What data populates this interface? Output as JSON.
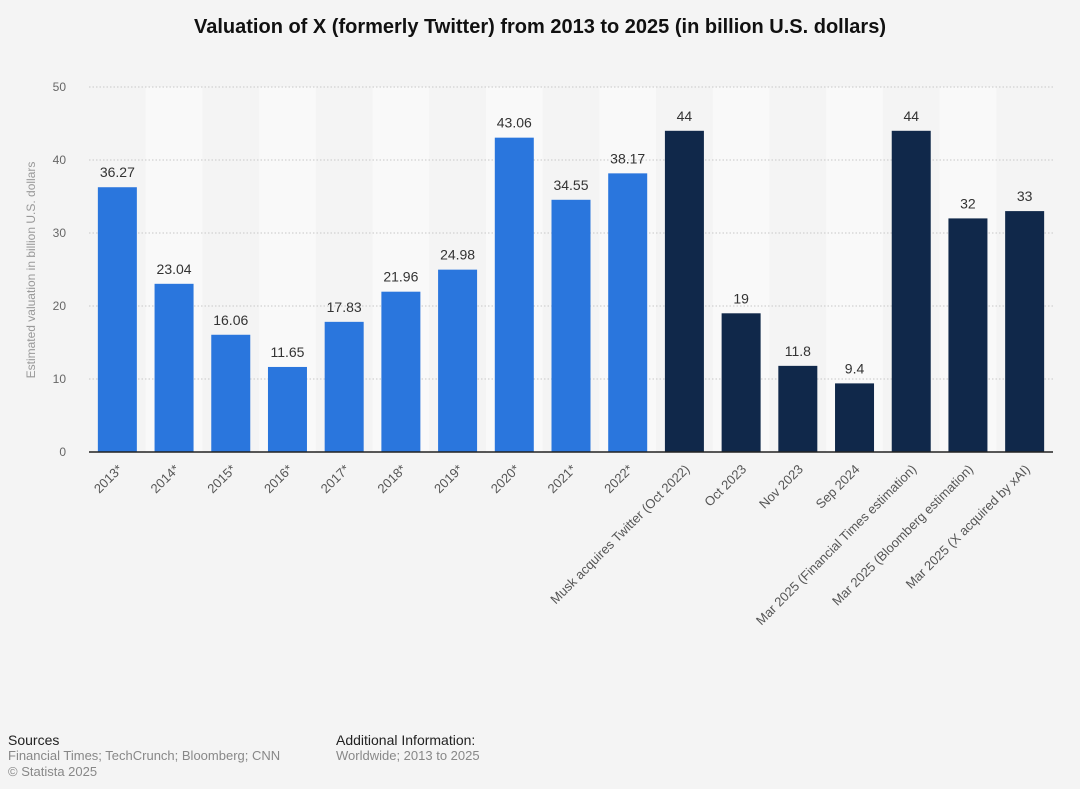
{
  "chart_data": {
    "type": "bar",
    "title": "Valuation of X (formerly Twitter) from 2013 to 2025 (in billion U.S. dollars)",
    "xlabel": "",
    "ylabel": "Estimated valuation in billion U.S. dollars",
    "ylim": [
      0,
      50
    ],
    "yticks": [
      0,
      10,
      20,
      30,
      40,
      50
    ],
    "grid": true,
    "categories": [
      "2013*",
      "2014*",
      "2015*",
      "2016*",
      "2017*",
      "2018*",
      "2019*",
      "2020*",
      "2021*",
      "2022*",
      "Musk acquires Twitter (Oct 2022)",
      "Oct 2023",
      "Nov 2023",
      "Sep 2024",
      "Mar 2025 (Financial Times estimation)",
      "Mar 2025 (Bloomberg estimation)",
      "Mar 2025 (X acquired by xAI)"
    ],
    "values": [
      36.27,
      23.04,
      16.06,
      11.65,
      17.83,
      21.96,
      24.98,
      43.06,
      34.55,
      38.17,
      44,
      19,
      11.8,
      9.4,
      44,
      32,
      33
    ],
    "value_labels": [
      "36.27",
      "23.04",
      "16.06",
      "11.65",
      "17.83",
      "21.96",
      "24.98",
      "43.06",
      "34.55",
      "38.17",
      "44",
      "19",
      "11.8",
      "9.4",
      "44",
      "32",
      "33"
    ],
    "bar_colors": [
      "#2a76dd",
      "#2a76dd",
      "#2a76dd",
      "#2a76dd",
      "#2a76dd",
      "#2a76dd",
      "#2a76dd",
      "#2a76dd",
      "#2a76dd",
      "#2a76dd",
      "#10284a",
      "#10284a",
      "#10284a",
      "#10284a",
      "#10284a",
      "#10284a",
      "#10284a"
    ]
  },
  "footer": {
    "sources_heading": "Sources",
    "sources_text": "Financial Times; TechCrunch; Bloomberg; CNN",
    "copyright": "© Statista 2025",
    "additional_heading": "Additional Information:",
    "additional_text": "Worldwide; 2013 to 2025"
  }
}
